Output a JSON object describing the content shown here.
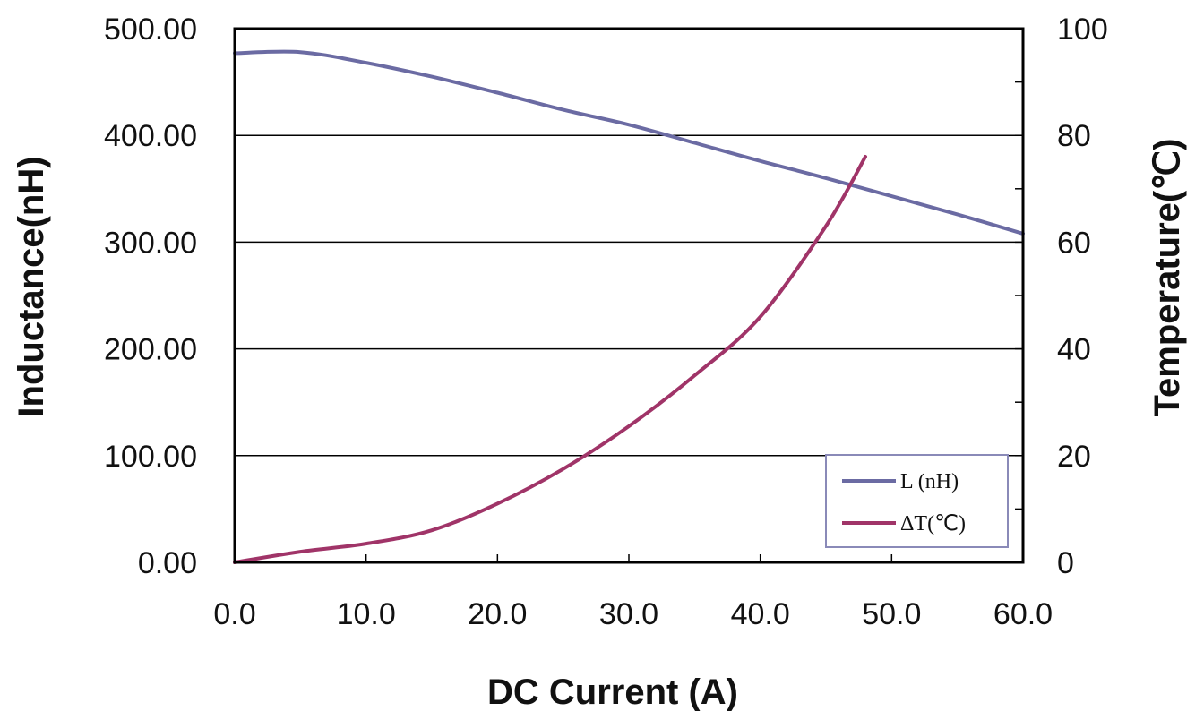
{
  "chart_data": {
    "type": "line",
    "xlabel": "DC Current (A)",
    "ylabel_left": "Inductance(nH)",
    "ylabel_right": "Temperature(℃)",
    "xlim": [
      0,
      60
    ],
    "ylim_left": [
      0,
      500
    ],
    "ylim_right": [
      0,
      100
    ],
    "x_ticks": [
      "0.0",
      "10.0",
      "20.0",
      "30.0",
      "40.0",
      "50.0",
      "60.0"
    ],
    "y_left_ticks": [
      "0.00",
      "100.00",
      "200.00",
      "300.00",
      "400.00",
      "500.00"
    ],
    "y_right_ticks": [
      "0",
      "20",
      "40",
      "60",
      "80",
      "100"
    ],
    "grid": "horizontal",
    "legend_position": "bottom-right",
    "colors": {
      "inductance": "#6B6BA3",
      "temperature": "#A03468"
    },
    "series": [
      {
        "name": "L (nH)",
        "axis": "left",
        "x": [
          0,
          5,
          10,
          15,
          20,
          25,
          30,
          35,
          40,
          45,
          50,
          55,
          60
        ],
        "y": [
          477,
          478,
          468,
          455,
          440,
          424,
          410,
          393,
          376,
          360,
          343,
          326,
          308
        ]
      },
      {
        "name": "ΔT(℃)",
        "axis": "right",
        "x": [
          0,
          5,
          10,
          15,
          20,
          25,
          30,
          35,
          40,
          45,
          48
        ],
        "y": [
          0,
          2,
          3.5,
          6,
          11,
          17.5,
          25.5,
          35,
          46,
          63,
          76
        ]
      }
    ]
  }
}
